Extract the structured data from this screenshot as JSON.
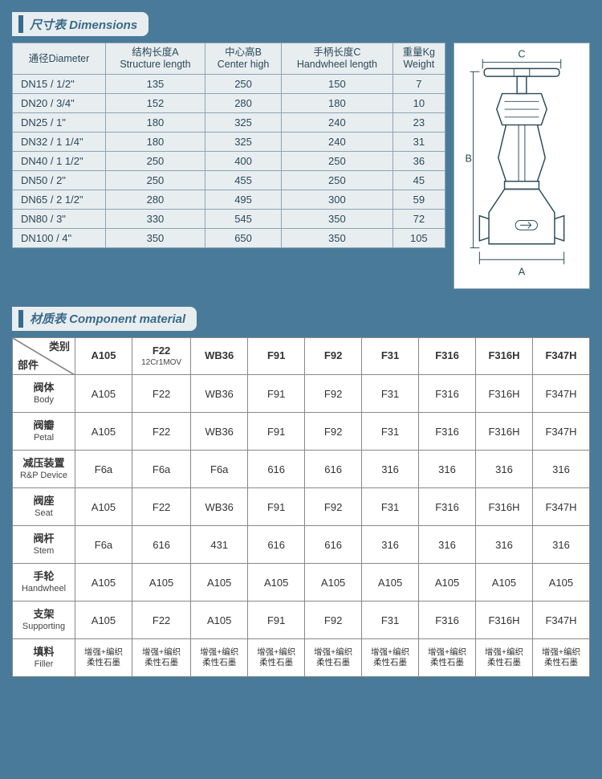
{
  "colors": {
    "page_bg": "#4a7a9a",
    "panel_bg": "#e8edf0",
    "border": "#8aa5b5",
    "header_text": "#3a6a8a",
    "mat_bg": "#ffffff",
    "mat_border": "#888888"
  },
  "dimensions_section": {
    "title": "尺寸表 Dimensions",
    "columns": [
      {
        "cn": "通径",
        "en": "Diameter"
      },
      {
        "cn": "结构长度A",
        "en": "Structure length"
      },
      {
        "cn": "中心高B",
        "en": "Center high"
      },
      {
        "cn": "手柄长度C",
        "en": "Handwheel length"
      },
      {
        "cn": "重量Kg",
        "en": "Weight"
      }
    ],
    "rows": [
      [
        "DN15 / 1/2\"",
        "135",
        "250",
        "150",
        "7"
      ],
      [
        "DN20 / 3/4\"",
        "152",
        "280",
        "180",
        "10"
      ],
      [
        "DN25 / 1\"",
        "180",
        "325",
        "240",
        "23"
      ],
      [
        "DN32 / 1 1/4\"",
        "180",
        "325",
        "240",
        "31"
      ],
      [
        "DN40 / 1 1/2\"",
        "250",
        "400",
        "250",
        "36"
      ],
      [
        "DN50 / 2\"",
        "250",
        "455",
        "250",
        "45"
      ],
      [
        "DN65 / 2 1/2\"",
        "280",
        "495",
        "300",
        "59"
      ],
      [
        "DN80 / 3\"",
        "330",
        "545",
        "350",
        "72"
      ],
      [
        "DN100 / 4\"",
        "350",
        "650",
        "350",
        "105"
      ]
    ],
    "diagram_labels": {
      "A": "A",
      "B": "B",
      "C": "C"
    }
  },
  "materials_section": {
    "title": "材质表 Component material",
    "corner": {
      "top": "类别",
      "bottom": "部件"
    },
    "columns": [
      {
        "label": "A105",
        "sub": ""
      },
      {
        "label": "F22",
        "sub": "12Cr1MOV"
      },
      {
        "label": "WB36",
        "sub": ""
      },
      {
        "label": "F91",
        "sub": ""
      },
      {
        "label": "F92",
        "sub": ""
      },
      {
        "label": "F31",
        "sub": ""
      },
      {
        "label": "F316",
        "sub": ""
      },
      {
        "label": "F316H",
        "sub": ""
      },
      {
        "label": "F347H",
        "sub": ""
      }
    ],
    "rows": [
      {
        "part_cn": "阀体",
        "part_en": "Body",
        "cells": [
          "A105",
          "F22",
          "WB36",
          "F91",
          "F92",
          "F31",
          "F316",
          "F316H",
          "F347H"
        ]
      },
      {
        "part_cn": "阀瓣",
        "part_en": "Petal",
        "cells": [
          "A105",
          "F22",
          "WB36",
          "F91",
          "F92",
          "F31",
          "F316",
          "F316H",
          "F347H"
        ]
      },
      {
        "part_cn": "减压装置",
        "part_en": "R&P Device",
        "cells": [
          "F6a",
          "F6a",
          "F6a",
          "616",
          "616",
          "316",
          "316",
          "316",
          "316"
        ]
      },
      {
        "part_cn": "阀座",
        "part_en": "Seat",
        "cells": [
          "A105",
          "F22",
          "WB36",
          "F91",
          "F92",
          "F31",
          "F316",
          "F316H",
          "F347H"
        ]
      },
      {
        "part_cn": "阀杆",
        "part_en": "Stem",
        "cells": [
          "F6a",
          "616",
          "431",
          "616",
          "616",
          "316",
          "316",
          "316",
          "316"
        ]
      },
      {
        "part_cn": "手轮",
        "part_en": "Handwheel",
        "cells": [
          "A105",
          "A105",
          "A105",
          "A105",
          "A105",
          "A105",
          "A105",
          "A105",
          "A105"
        ]
      },
      {
        "part_cn": "支架",
        "part_en": "Supporting",
        "cells": [
          "A105",
          "F22",
          "A105",
          "F91",
          "F92",
          "F31",
          "F316",
          "F316H",
          "F347H"
        ]
      },
      {
        "part_cn": "填料",
        "part_en": "Filler",
        "filler": true,
        "cells": [
          "增强+编织 柔性石墨",
          "增强+编织 柔性石墨",
          "增强+编织 柔性石墨",
          "增强+编织 柔性石墨",
          "增强+编织 柔性石墨",
          "增强+编织 柔性石墨",
          "增强+编织 柔性石墨",
          "增强+编织 柔性石墨",
          "增强+编织 柔性石墨"
        ]
      }
    ]
  }
}
